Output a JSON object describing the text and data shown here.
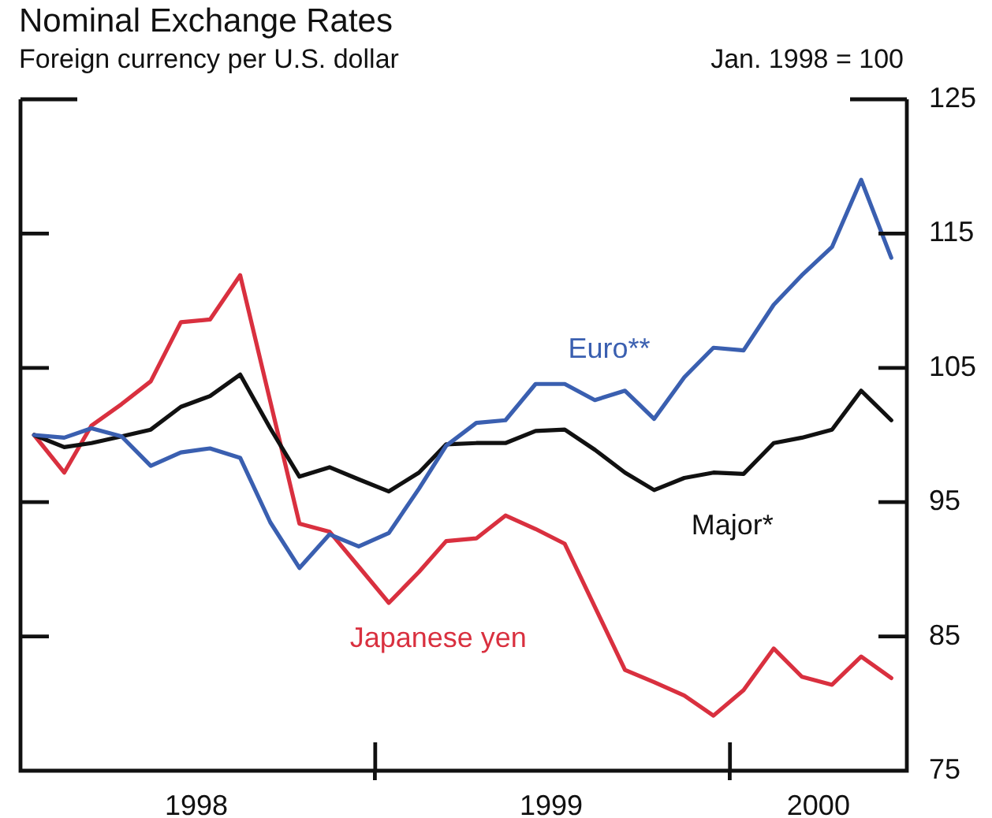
{
  "chart_data": {
    "type": "line",
    "title": "Nominal Exchange Rates",
    "subtitle": "Foreign currency per U.S. dollar",
    "ylabel": "Jan. 1998 = 100",
    "x": [
      "1998-01-15",
      "1998-02-15",
      "1998-03-15",
      "1998-04-15",
      "1998-05-15",
      "1998-06-15",
      "1998-07-15",
      "1998-08-15",
      "1998-09-15",
      "1998-10-15",
      "1998-11-15",
      "1998-12-15",
      "1999-01-15",
      "1999-02-15",
      "1999-03-15",
      "1999-04-15",
      "1999-05-15",
      "1999-06-15",
      "1999-07-15",
      "1999-08-15",
      "1999-09-15",
      "1999-10-15",
      "1999-11-15",
      "1999-12-15",
      "2000-01-15",
      "2000-02-15",
      "2000-03-15",
      "2000-04-15",
      "2000-05-15",
      "2000-06-15"
    ],
    "series": [
      {
        "name": "Euro**",
        "color": "#3a5fb0",
        "values": [
          100,
          99.8,
          100.5,
          99.9,
          97.7,
          98.7,
          99,
          98.3,
          93.5,
          90.1,
          92.6,
          91.7,
          92.7,
          96,
          99.2,
          100.9,
          101.1,
          103.8,
          103.8,
          102.6,
          103.3,
          101.2,
          104.3,
          106.5,
          106.3,
          109.7,
          111.9,
          114,
          119,
          113.2
        ]
      },
      {
        "name": "Major*",
        "color": "#111111",
        "values": [
          100,
          99.1,
          99.4,
          99.9,
          100.4,
          102.1,
          102.9,
          104.5,
          100.5,
          96.9,
          97.6,
          96.7,
          95.8,
          97.2,
          99.3,
          99.4,
          99.4,
          100.3,
          100.4,
          98.9,
          97.2,
          95.9,
          96.8,
          97.2,
          97.1,
          99.4,
          99.8,
          100.4,
          103.3,
          101.1
        ]
      },
      {
        "name": "Japanese yen",
        "color": "#d9303f",
        "values": [
          100,
          97.2,
          100.7,
          102.3,
          104,
          108.4,
          108.6,
          111.9,
          102.5,
          93.4,
          92.8,
          90.2,
          87.5,
          89.8,
          92.1,
          92.3,
          94,
          93,
          91.9,
          87.2,
          82.5,
          81.6,
          80.6,
          79.1,
          81,
          84.1,
          82,
          81.4,
          83.5,
          81.9
        ]
      }
    ],
    "xlim": [
      "1998-01-01",
      "2000-07-01"
    ],
    "xticks": [
      {
        "value": "1998-07-01",
        "label": "1998"
      },
      {
        "value": "1999-01-01",
        "label": null
      },
      {
        "value": "1999-07-01",
        "label": "1999"
      },
      {
        "value": "2000-01-01",
        "label": null
      },
      {
        "value": "2000-04-01",
        "label": "2000"
      }
    ],
    "ylim": [
      75,
      125
    ],
    "yticks": [
      75,
      85,
      95,
      105,
      115,
      125
    ],
    "grid": false,
    "legend": false,
    "marker": "none",
    "line_style": "solid"
  }
}
